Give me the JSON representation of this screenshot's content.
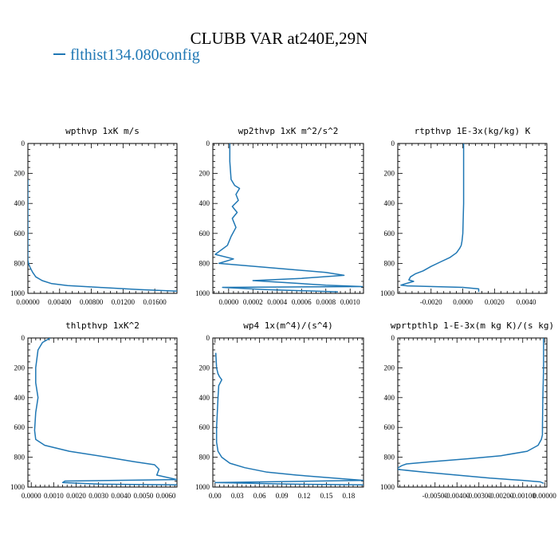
{
  "figure": {
    "title": "CLUBB VAR at240E,29N",
    "legend": {
      "label": "flthist134.080config",
      "color": "#1f77b4"
    }
  },
  "chart_data": [
    {
      "type": "line",
      "title": "wpthvp   1xK m/s",
      "xlabel": "",
      "ylabel": "",
      "xlim": [
        0,
        0.0188
      ],
      "ylim": [
        1000,
        0
      ],
      "x_ticks": [
        0,
        0.004,
        0.008,
        0.012,
        0.016
      ],
      "x_tick_labels": [
        "0.00000",
        "0.00400",
        "0.00800",
        "0.01200",
        "0.01600"
      ],
      "y_ticks": [
        0,
        200,
        400,
        600,
        800,
        1000
      ],
      "y_tick_labels": [
        "0",
        "200",
        "400",
        "600",
        "800",
        "1000"
      ],
      "series": [
        {
          "color": "#1f77b4",
          "x": [
            0,
            0,
            0,
            0,
            0.0001,
            0.0003,
            0.0006,
            0.001,
            0.0018,
            0.003,
            0.005,
            0.009,
            0.014,
            0.0188
          ],
          "y": [
            240,
            400,
            600,
            780,
            805,
            830,
            860,
            890,
            915,
            935,
            948,
            960,
            975,
            985
          ]
        }
      ]
    },
    {
      "type": "line",
      "title": "wp2thvp   1xK m^2/s^2",
      "xlabel": "",
      "ylabel": "",
      "xlim": [
        -0.00013,
        0.00111
      ],
      "ylim": [
        1000,
        0
      ],
      "x_ticks": [
        0,
        0.0002,
        0.0004,
        0.0006,
        0.0008,
        0.001
      ],
      "x_tick_labels": [
        "0.0000",
        "0.0002",
        "0.0004",
        "0.0006",
        "0.0008",
        "0.0010"
      ],
      "y_ticks": [
        0,
        200,
        400,
        600,
        800,
        1000
      ],
      "y_tick_labels": [
        "0",
        "200",
        "400",
        "600",
        "800",
        "1000"
      ],
      "series": [
        {
          "color": "#1f77b4",
          "x": [
            1e-05,
            1e-05,
            2e-05,
            5e-05,
            9e-05,
            6e-05,
            8e-05,
            3e-05,
            7e-05,
            3e-05,
            6e-05,
            2e-05,
            -1e-05,
            -0.00011,
            4e-05,
            -8e-05,
            0.0008,
            0.00095,
            0.0006,
            0.0002,
            0.0004,
            0.0006,
            0.0008,
            0.0011,
            -5e-05,
            0.0003,
            0.0009
          ],
          "y": [
            0,
            120,
            240,
            280,
            300,
            340,
            380,
            420,
            460,
            500,
            560,
            620,
            680,
            740,
            770,
            800,
            860,
            880,
            900,
            915,
            925,
            935,
            945,
            955,
            960,
            975,
            990
          ]
        }
      ]
    },
    {
      "type": "line",
      "title": "rtpthvp   1E-3x(kg/kg) K",
      "xlabel": "",
      "ylabel": "",
      "xlim": [
        -0.0041,
        0.0053
      ],
      "ylim": [
        1000,
        0
      ],
      "x_ticks": [
        -0.002,
        0,
        0.002,
        0.004
      ],
      "x_tick_labels": [
        "-0.0020",
        "0.0000",
        "0.0020",
        "0.0040"
      ],
      "y_ticks": [
        0,
        200,
        400,
        600,
        800,
        1000
      ],
      "y_tick_labels": [
        "0",
        "200",
        "400",
        "600",
        "800",
        "1000"
      ],
      "series": [
        {
          "color": "#1f77b4",
          "x": [
            5e-05,
            5e-05,
            5e-05,
            0.0,
            -5e-05,
            -0.0001,
            -0.0002,
            -0.0004,
            -0.0008,
            -0.0014,
            -0.002,
            -0.0025,
            -0.003,
            -0.0033,
            -0.0034,
            -0.0031,
            -0.0036,
            -0.0039,
            -0.0035,
            0.0,
            0.001,
            0.001
          ],
          "y": [
            0,
            200,
            400,
            600,
            650,
            680,
            700,
            730,
            760,
            790,
            820,
            850,
            870,
            890,
            910,
            920,
            935,
            945,
            950,
            960,
            970,
            990
          ]
        }
      ]
    },
    {
      "type": "line",
      "title": "thlpthvp   1xK^2",
      "xlabel": "",
      "ylabel": "",
      "xlim": [
        -0.00015,
        0.0065
      ],
      "ylim": [
        1000,
        0
      ],
      "x_ticks": [
        0,
        0.001,
        0.002,
        0.003,
        0.004,
        0.005,
        0.006
      ],
      "x_tick_labels": [
        "0.0000",
        "0.0010",
        "0.0020",
        "0.0030",
        "0.0040",
        "0.0050",
        "0.0060"
      ],
      "y_ticks": [
        0,
        200,
        400,
        600,
        800,
        1000
      ],
      "y_tick_labels": [
        "0",
        "200",
        "400",
        "600",
        "800",
        "1000"
      ],
      "series": [
        {
          "color": "#1f77b4",
          "x": [
            0.00085,
            0.0005,
            0.0003,
            0.0002,
            0.0002,
            0.0003,
            0.0002,
            0.00015,
            0.0002,
            0.0006,
            0.0017,
            0.0034,
            0.0046,
            0.0055,
            0.0057,
            0.0056,
            0.0065,
            0.0015,
            0.0014,
            0.003,
            0.0065
          ],
          "y": [
            0,
            30,
            80,
            200,
            300,
            400,
            500,
            620,
            680,
            720,
            760,
            800,
            830,
            850,
            880,
            920,
            950,
            960,
            970,
            980,
            985
          ]
        }
      ]
    },
    {
      "type": "line",
      "title": "wp4   1x(m^4)/(s^4)",
      "xlabel": "",
      "ylabel": "",
      "xlim": [
        -0.003,
        0.2
      ],
      "ylim": [
        1000,
        0
      ],
      "x_ticks": [
        0,
        0.03,
        0.06,
        0.09,
        0.12,
        0.15,
        0.18
      ],
      "x_tick_labels": [
        "0.00",
        "0.03",
        "0.06",
        "0.09",
        "0.12",
        "0.15",
        "0.18"
      ],
      "y_ticks": [
        0,
        200,
        400,
        600,
        800,
        1000
      ],
      "y_tick_labels": [
        "0",
        "200",
        "400",
        "600",
        "800",
        "1000"
      ],
      "series": [
        {
          "color": "#1f77b4",
          "x": [
            0.001,
            0.002,
            0.004,
            0.006,
            0.009,
            0.005,
            0.004,
            0.003,
            0.002,
            0.002,
            0.004,
            0.009,
            0.02,
            0.04,
            0.07,
            0.11,
            0.16,
            0.2,
            0.0,
            0.1,
            0.2
          ],
          "y": [
            100,
            200,
            240,
            260,
            280,
            320,
            400,
            500,
            600,
            700,
            760,
            800,
            840,
            870,
            900,
            920,
            940,
            955,
            970,
            980,
            985
          ]
        }
      ]
    },
    {
      "type": "line",
      "title": "wprtpthlp   1-E-3x(m kg K)/(s kg)",
      "xlabel": "",
      "ylabel": "",
      "xlim": [
        -0.0067,
        0.0001
      ],
      "ylim": [
        1000,
        0
      ],
      "x_ticks": [
        -0.005,
        -0.004,
        -0.003,
        -0.002,
        -0.001,
        0
      ],
      "x_tick_labels": [
        "-0.00500",
        "-0.00400",
        "-0.00300",
        "-0.00200",
        "-0.00100",
        "0.00000"
      ],
      "y_ticks": [
        0,
        200,
        400,
        600,
        800,
        1000
      ],
      "y_tick_labels": [
        "0",
        "200",
        "400",
        "600",
        "800",
        "1000"
      ],
      "series": [
        {
          "color": "#1f77b4",
          "x": [
            -5e-05,
            -5e-05,
            -8e-05,
            -0.0001,
            -0.0001,
            -0.00015,
            -0.0003,
            -0.0008,
            -0.002,
            -0.0035,
            -0.0052,
            -0.0063,
            -0.0065,
            -0.0068,
            -0.0055,
            -0.004,
            -0.0025,
            -0.001,
            -0.0002,
            -5e-05
          ],
          "y": [
            0,
            200,
            400,
            600,
            650,
            680,
            720,
            760,
            790,
            810,
            830,
            845,
            855,
            880,
            900,
            920,
            940,
            955,
            965,
            975
          ]
        }
      ]
    }
  ]
}
